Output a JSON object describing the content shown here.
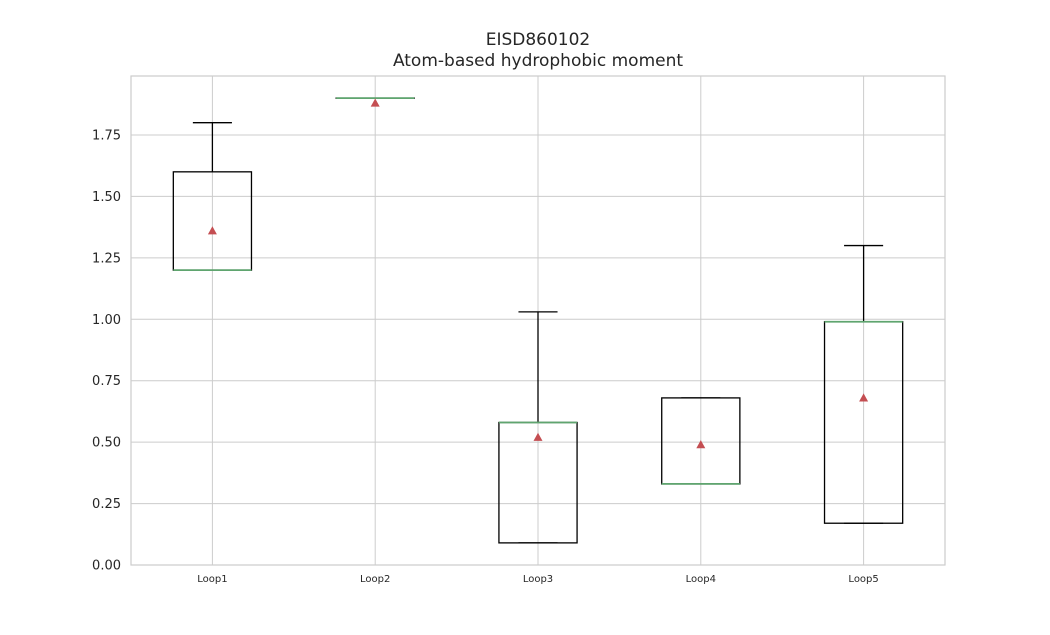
{
  "chart_data": {
    "type": "box",
    "title": "EISD860102",
    "subtitle": "Atom-based hydrophobic moment",
    "xlabel": "",
    "ylabel": "",
    "ylim": [
      0,
      1.99
    ],
    "yticks": [
      "0.00",
      "0.25",
      "0.50",
      "0.75",
      "1.00",
      "1.25",
      "1.50",
      "1.75"
    ],
    "grid": true,
    "categories": [
      "Loop1",
      "Loop2",
      "Loop3",
      "Loop4",
      "Loop5"
    ],
    "boxes": [
      {
        "q1": 1.2,
        "median": 1.2,
        "q3": 1.6,
        "whisker_low": 1.2,
        "whisker_high": 1.8,
        "mean": 1.36
      },
      {
        "q1": 1.9,
        "median": 1.9,
        "q3": 1.9,
        "whisker_low": 1.9,
        "whisker_high": 1.9,
        "mean": 1.88
      },
      {
        "q1": 0.09,
        "median": 0.58,
        "q3": 0.58,
        "whisker_low": 0.09,
        "whisker_high": 1.03,
        "mean": 0.52
      },
      {
        "q1": 0.33,
        "median": 0.33,
        "q3": 0.68,
        "whisker_low": 0.33,
        "whisker_high": 0.68,
        "mean": 0.49
      },
      {
        "q1": 0.17,
        "median": 0.99,
        "q3": 0.99,
        "whisker_low": 0.17,
        "whisker_high": 1.3,
        "mean": 0.68
      }
    ],
    "colors": {
      "box": "#000000",
      "median": "#5fa56f",
      "mean": "#c44e52",
      "grid": "#cccccc",
      "frame": "#cccccc"
    }
  }
}
